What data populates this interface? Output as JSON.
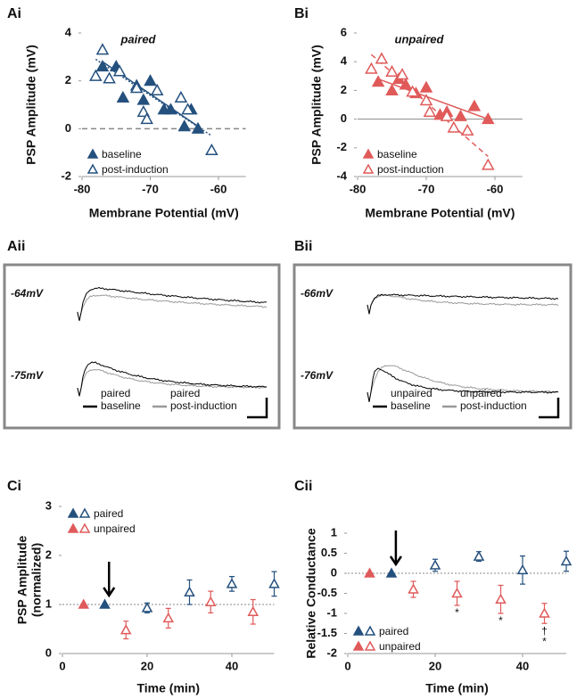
{
  "chart_data": [
    {
      "type": "scatter",
      "panel": "Ai",
      "title": "paired",
      "xlabel": "Membrane Potential (mV)",
      "ylabel": "PSP Amplitude (mV)",
      "xlim": [
        -80,
        -56
      ],
      "xticks": [
        -80,
        -70,
        -60
      ],
      "ylim": [
        -2,
        4
      ],
      "yticks": [
        -2,
        0,
        2,
        4
      ],
      "hline": 0,
      "hline_style": "dashed",
      "legend": "lower left",
      "series": [
        {
          "name": "baseline",
          "color": "#24507e",
          "marker": "filled",
          "x": [
            -77,
            -75,
            -74,
            -72,
            -71,
            -70,
            -68,
            -67,
            -65,
            -64,
            -63
          ],
          "values": [
            2.6,
            2.6,
            1.3,
            1.8,
            1.2,
            2.0,
            0.8,
            0.8,
            0.1,
            0.8,
            0.0
          ],
          "fit": [
            [
              -77,
              2.8
            ],
            [
              -63,
              0.1
            ]
          ],
          "fit_style": "solid"
        },
        {
          "name": "post-induction",
          "color": "#24507e",
          "marker": "open",
          "x": [
            -78,
            -77,
            -76,
            -74.5,
            -72,
            -71,
            -70.5,
            -69,
            -65.5,
            -64.5,
            -61
          ],
          "values": [
            2.2,
            3.3,
            2.1,
            2.4,
            1.7,
            0.7,
            0.4,
            1.6,
            1.3,
            0.8,
            -0.9
          ],
          "fit": [
            [
              -78,
              2.9
            ],
            [
              -61,
              -0.3
            ]
          ],
          "fit_style": "dotted"
        }
      ]
    },
    {
      "type": "scatter",
      "panel": "Bi",
      "title": "unpaired",
      "xlabel": "Membrane Potential (mV)",
      "ylabel": "PSP Amplitude (mV)",
      "xlim": [
        -80,
        -56
      ],
      "xticks": [
        -80,
        -70,
        -60
      ],
      "ylim": [
        -4,
        6
      ],
      "yticks": [
        -4,
        -2,
        0,
        2,
        4,
        6
      ],
      "hline": 0,
      "hline_style": "solid",
      "legend": "lower left",
      "series": [
        {
          "name": "baseline",
          "color": "#e05a5a",
          "marker": "filled",
          "x": [
            -77,
            -75,
            -74,
            -73,
            -71.5,
            -70,
            -68,
            -67,
            -65,
            -63,
            -61
          ],
          "values": [
            2.6,
            2.0,
            2.8,
            2.4,
            1.8,
            2.2,
            0.3,
            0.5,
            0.2,
            0.9,
            0.0
          ],
          "fit": [
            [
              -77,
              2.8
            ],
            [
              -61,
              0.0
            ]
          ],
          "fit_style": "solid"
        },
        {
          "name": "post-induction",
          "color": "#e05a5a",
          "marker": "open",
          "x": [
            -78,
            -76.5,
            -75,
            -73.5,
            -72,
            -70,
            -69.5,
            -67,
            -66,
            -64,
            -61
          ],
          "values": [
            3.5,
            4.2,
            3.3,
            3.1,
            1.9,
            1.3,
            0.5,
            0.2,
            -0.6,
            -0.8,
            -3.2
          ],
          "fit": [
            [
              -78,
              4.5
            ],
            [
              -61,
              -2.6
            ]
          ],
          "fit_style": "dashed"
        }
      ]
    },
    {
      "type": "traces",
      "panel": "Aii",
      "labels": [
        "-64mV",
        "-75mV"
      ],
      "legend_entries": [
        {
          "name": [
            "paired",
            "baseline"
          ],
          "color": "#000000"
        },
        {
          "name": [
            "paired",
            "post-induction"
          ],
          "color": "#999999"
        }
      ]
    },
    {
      "type": "traces",
      "panel": "Bii",
      "labels": [
        "-66mV",
        "-76mV"
      ],
      "legend_entries": [
        {
          "name": [
            "unpaired",
            "baseline"
          ],
          "color": "#000000"
        },
        {
          "name": [
            "unpaired",
            "post-induction"
          ],
          "color": "#999999"
        }
      ]
    },
    {
      "type": "errorbar",
      "panel": "Ci",
      "xlabel": "Time (min)",
      "ylabel": [
        "PSP Amplitude",
        "(normalized)"
      ],
      "xlim": [
        0,
        50
      ],
      "xticks": [
        0,
        20,
        40
      ],
      "ylim": [
        0,
        3
      ],
      "yticks": [
        0,
        1,
        2,
        3
      ],
      "hline": 1,
      "hline_style": "dotted",
      "arrow": 11,
      "legend": "upper left",
      "series": [
        {
          "name": "paired",
          "color": "#24507e",
          "x": [
            10,
            20,
            30,
            40,
            50
          ],
          "values": [
            1.0,
            0.93,
            1.25,
            1.42,
            1.42
          ],
          "errors": [
            0,
            0.1,
            0.25,
            0.15,
            0.25
          ],
          "filled": [
            true,
            false,
            false,
            false,
            false
          ]
        },
        {
          "name": "unpaired",
          "color": "#e05a5a",
          "x": [
            5,
            15,
            25,
            35,
            45
          ],
          "values": [
            1.0,
            0.48,
            0.72,
            1.05,
            0.85
          ],
          "errors": [
            0,
            0.18,
            0.2,
            0.22,
            0.25
          ],
          "filled": [
            true,
            false,
            false,
            false,
            false
          ]
        }
      ]
    },
    {
      "type": "errorbar",
      "panel": "Cii",
      "xlabel": "Time (min)",
      "ylabel": [
        "Relative Conductance"
      ],
      "xlim": [
        0,
        50
      ],
      "xticks": [
        0,
        20,
        40
      ],
      "ylim": [
        -2,
        1
      ],
      "yticks": [
        -2,
        -1.5,
        -1,
        -0.5,
        0,
        0.5,
        1
      ],
      "hline": 0,
      "hline_style": "dotted",
      "arrow": 11,
      "legend": "lower left",
      "series": [
        {
          "name": "paired",
          "color": "#24507e",
          "x": [
            10,
            20,
            30,
            40,
            50
          ],
          "values": [
            0,
            0.2,
            0.42,
            0.08,
            0.3
          ],
          "errors": [
            0,
            0.15,
            0.12,
            0.35,
            0.25
          ],
          "filled": [
            true,
            false,
            false,
            false,
            false
          ]
        },
        {
          "name": "unpaired",
          "color": "#e05a5a",
          "x": [
            5,
            15,
            25,
            35,
            45
          ],
          "values": [
            0,
            -0.4,
            -0.5,
            -0.65,
            -1.0
          ],
          "errors": [
            0,
            0.2,
            0.3,
            0.35,
            0.25
          ],
          "filled": [
            true,
            false,
            false,
            false,
            false
          ]
        }
      ],
      "annotations": [
        {
          "text": "*",
          "series": 1,
          "index": 2
        },
        {
          "text": "*",
          "series": 1,
          "index": 3
        },
        {
          "text": "†",
          "series": 1,
          "index": 4
        },
        {
          "text": "*",
          "series": 1,
          "index": 4
        }
      ]
    }
  ]
}
